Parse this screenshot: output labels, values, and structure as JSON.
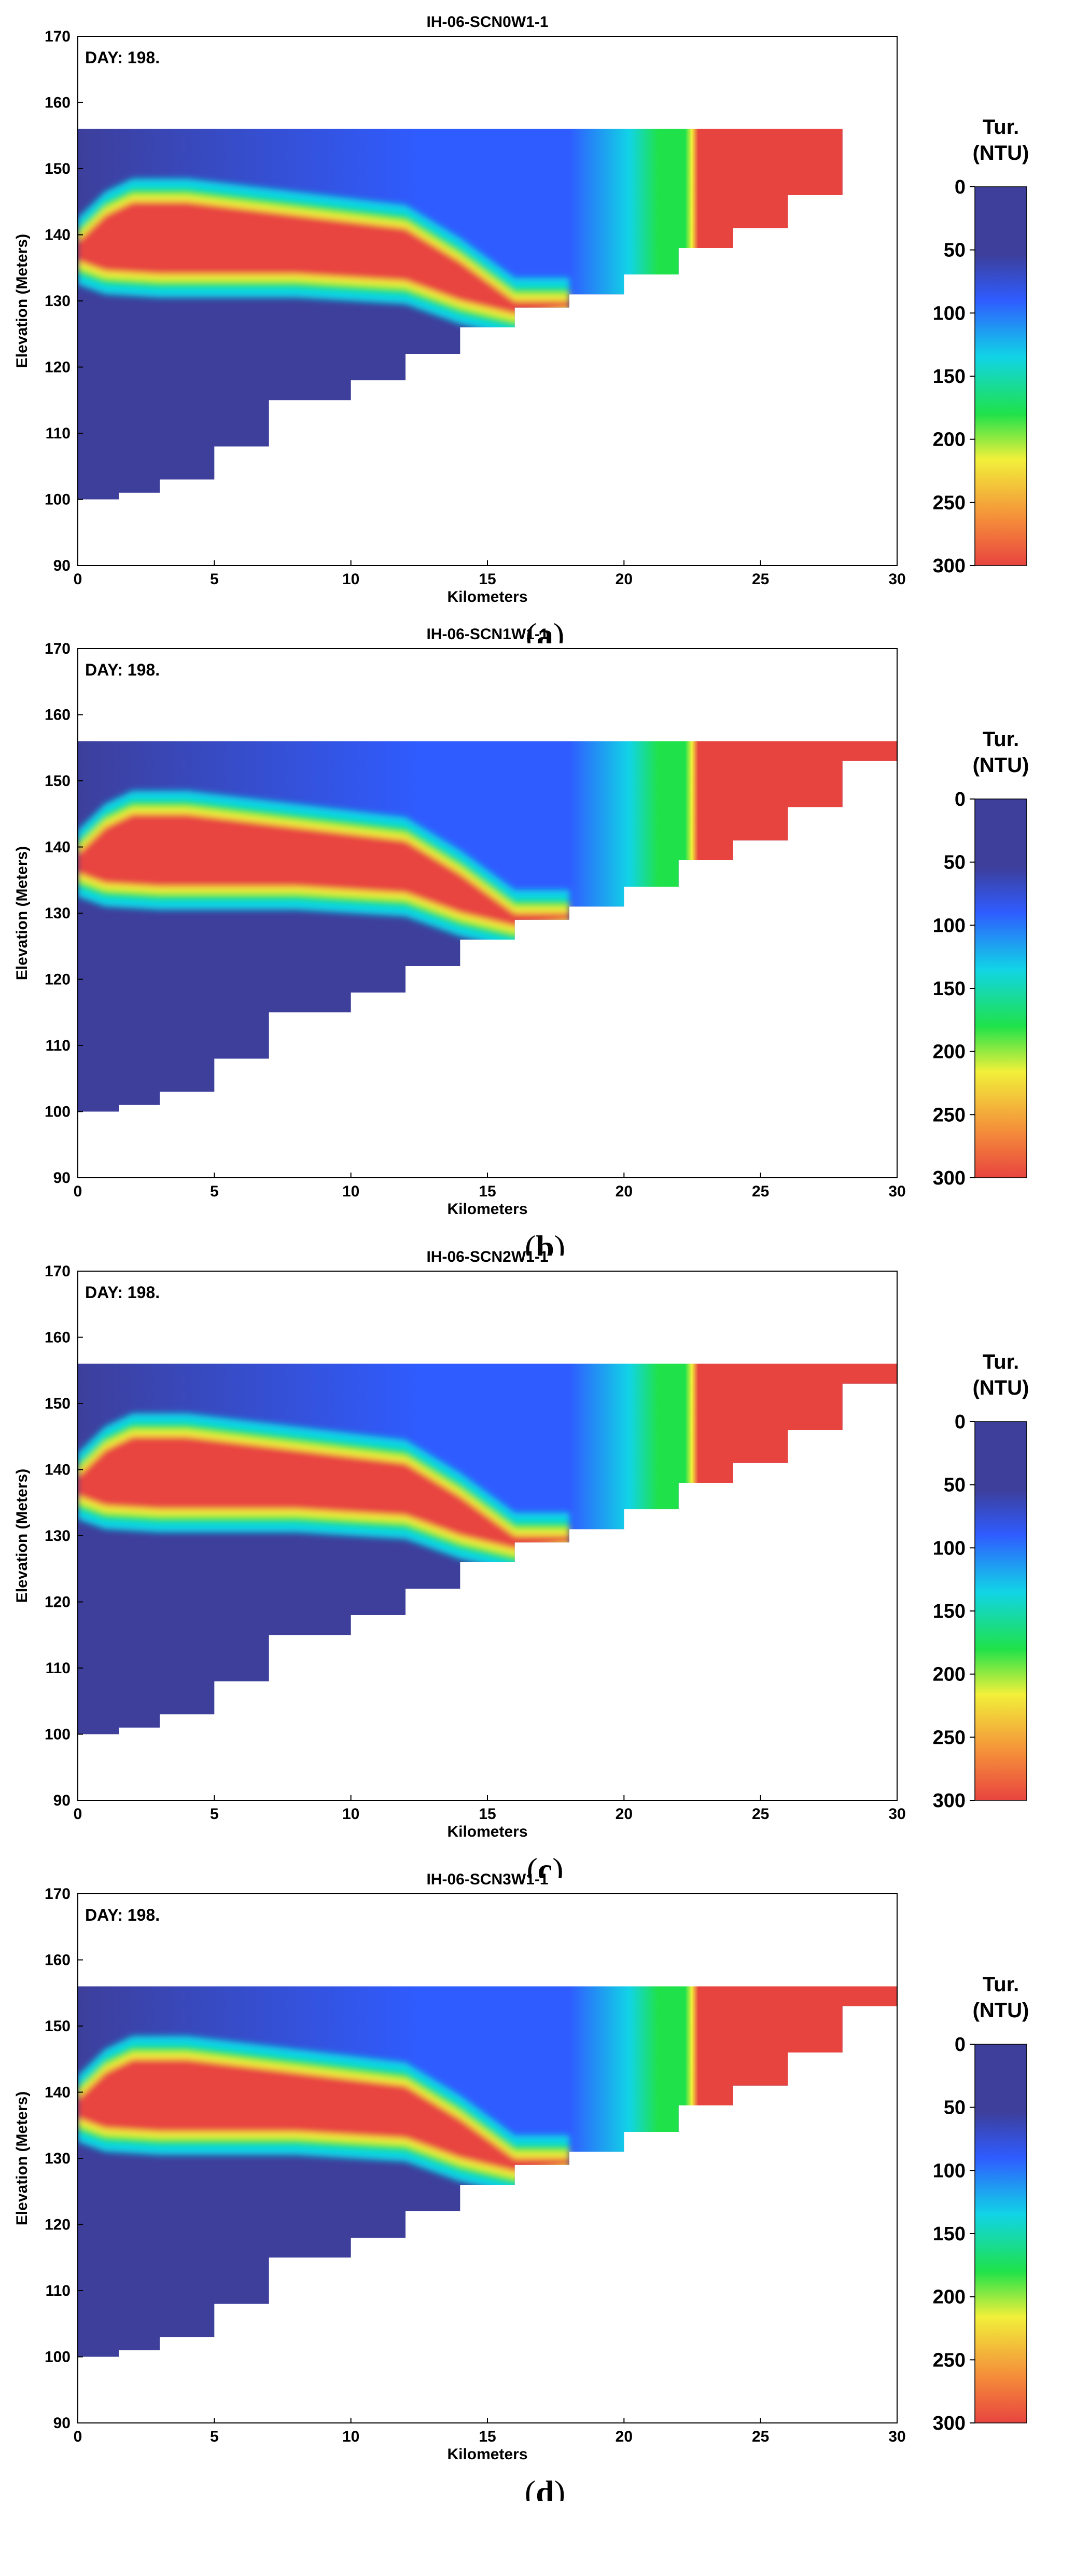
{
  "chart_data": [
    {
      "type": "heatmap",
      "panel_label": "a",
      "title": "IH-06-SCN0W1-1",
      "annotation": "DAY: 198.",
      "xlabel": "Kilometers",
      "ylabel": "Elevation (Meters)",
      "xlim": [
        0,
        30
      ],
      "ylim": [
        90,
        170
      ],
      "xticks": [
        0,
        5,
        10,
        15,
        20,
        25,
        30
      ],
      "yticks": [
        90,
        100,
        110,
        120,
        130,
        140,
        150,
        160,
        170
      ],
      "water_surface_elevation": 156,
      "bed_profile": {
        "x": [
          0,
          1.5,
          3,
          5,
          7,
          10,
          12,
          14,
          16,
          18,
          20,
          22,
          24,
          26,
          28,
          29.5
        ],
        "y": [
          99,
          100,
          101,
          103,
          108,
          115,
          118,
          122,
          126,
          129,
          131,
          134,
          138,
          141,
          146,
          156
        ]
      },
      "plume_top": {
        "x": [
          0,
          1,
          2,
          4,
          8,
          12,
          14,
          16,
          18
        ],
        "y": [
          139,
          143,
          145,
          145,
          143,
          141,
          136,
          130,
          130
        ]
      },
      "plume_bottom": {
        "x": [
          0,
          1,
          3,
          8,
          12,
          14,
          16,
          18
        ],
        "y": [
          136,
          134.5,
          134,
          134,
          133,
          130,
          128,
          129
        ]
      },
      "front_km": 22.6,
      "colorbar": {
        "title_line1": "Tur.",
        "title_line2": "(NTU)",
        "min": 0,
        "max": 300,
        "ticks": [
          0,
          50,
          100,
          150,
          200,
          250,
          300
        ]
      }
    },
    {
      "type": "heatmap",
      "panel_label": "b",
      "title": "IH-06-SCN1W1-1",
      "annotation": "DAY: 198.",
      "xlabel": "Kilometers",
      "ylabel": "Elevation (Meters)",
      "xlim": [
        0,
        30
      ],
      "ylim": [
        90,
        170
      ],
      "xticks": [
        0,
        5,
        10,
        15,
        20,
        25,
        30
      ],
      "yticks": [
        90,
        100,
        110,
        120,
        130,
        140,
        150,
        160,
        170
      ],
      "water_surface_elevation": 156,
      "bed_profile": {
        "x": [
          0,
          1.5,
          3,
          5,
          7,
          10,
          12,
          14,
          16,
          18,
          20,
          22,
          24,
          26,
          28,
          30
        ],
        "y": [
          99,
          100,
          101,
          103,
          108,
          115,
          118,
          122,
          126,
          129,
          131,
          134,
          138,
          141,
          146,
          153
        ]
      },
      "plume_top": {
        "x": [
          0,
          1,
          2,
          4,
          8,
          12,
          14,
          16,
          18
        ],
        "y": [
          139,
          143,
          145,
          145,
          143,
          141,
          136,
          130,
          130
        ]
      },
      "plume_bottom": {
        "x": [
          0,
          1,
          3,
          8,
          12,
          14,
          16,
          18
        ],
        "y": [
          136,
          134.5,
          134,
          134,
          133,
          130,
          128,
          129
        ]
      },
      "front_km": 22.6,
      "colorbar": {
        "title_line1": "Tur.",
        "title_line2": "(NTU)",
        "min": 0,
        "max": 300,
        "ticks": [
          0,
          50,
          100,
          150,
          200,
          250,
          300
        ]
      }
    },
    {
      "type": "heatmap",
      "panel_label": "c",
      "title": "IH-06-SCN2W1-1",
      "annotation": "DAY: 198.",
      "xlabel": "Kilometers",
      "ylabel": "Elevation (Meters)",
      "xlim": [
        0,
        30
      ],
      "ylim": [
        90,
        170
      ],
      "xticks": [
        0,
        5,
        10,
        15,
        20,
        25,
        30
      ],
      "yticks": [
        90,
        100,
        110,
        120,
        130,
        140,
        150,
        160,
        170
      ],
      "water_surface_elevation": 156,
      "bed_profile": {
        "x": [
          0,
          1.5,
          3,
          5,
          7,
          10,
          12,
          14,
          16,
          18,
          20,
          22,
          24,
          26,
          28,
          30
        ],
        "y": [
          99,
          100,
          101,
          103,
          108,
          115,
          118,
          122,
          126,
          129,
          131,
          134,
          138,
          141,
          146,
          153
        ]
      },
      "plume_top": {
        "x": [
          0,
          1,
          2,
          4,
          8,
          12,
          14,
          16,
          18
        ],
        "y": [
          139,
          143,
          145,
          145,
          143,
          141,
          136,
          130,
          130
        ]
      },
      "plume_bottom": {
        "x": [
          0,
          1,
          3,
          8,
          12,
          14,
          16,
          18
        ],
        "y": [
          136,
          134.5,
          134,
          134,
          133,
          130,
          128,
          129
        ]
      },
      "front_km": 22.6,
      "colorbar": {
        "title_line1": "Tur.",
        "title_line2": "(NTU)",
        "min": 0,
        "max": 300,
        "ticks": [
          0,
          50,
          100,
          150,
          200,
          250,
          300
        ]
      }
    },
    {
      "type": "heatmap",
      "panel_label": "d",
      "title": "IH-06-SCN3W1-1",
      "annotation": "DAY: 198.",
      "xlabel": "Kilometers",
      "ylabel": "Elevation (Meters)",
      "xlim": [
        0,
        30
      ],
      "ylim": [
        90,
        170
      ],
      "xticks": [
        0,
        5,
        10,
        15,
        20,
        25,
        30
      ],
      "yticks": [
        90,
        100,
        110,
        120,
        130,
        140,
        150,
        160,
        170
      ],
      "water_surface_elevation": 156,
      "bed_profile": {
        "x": [
          0,
          1.5,
          3,
          5,
          7,
          10,
          12,
          14,
          16,
          18,
          20,
          22,
          24,
          26,
          28,
          30
        ],
        "y": [
          99,
          100,
          101,
          103,
          108,
          115,
          118,
          122,
          126,
          129,
          131,
          134,
          138,
          141,
          146,
          153
        ]
      },
      "plume_top": {
        "x": [
          0,
          1,
          2,
          4,
          8,
          12,
          14,
          16,
          18
        ],
        "y": [
          139,
          143,
          145,
          145,
          143,
          141,
          136,
          130,
          130
        ]
      },
      "plume_bottom": {
        "x": [
          0,
          1,
          3,
          8,
          12,
          14,
          16,
          18
        ],
        "y": [
          136,
          134.5,
          134,
          134,
          133,
          130,
          128,
          129
        ]
      },
      "front_km": 22.6,
      "colorbar": {
        "title_line1": "Tur.",
        "title_line2": "(NTU)",
        "min": 0,
        "max": 300,
        "ticks": [
          0,
          50,
          100,
          150,
          200,
          250,
          300
        ]
      }
    }
  ],
  "colors": {
    "low": "#3d3f9b",
    "blue": "#2f5cff",
    "cyan": "#11d4e6",
    "green": "#1fe24a",
    "yellow": "#f2f03a",
    "high": "#e8443f",
    "panel_bg": "#ffffff",
    "axis": "#000000"
  }
}
